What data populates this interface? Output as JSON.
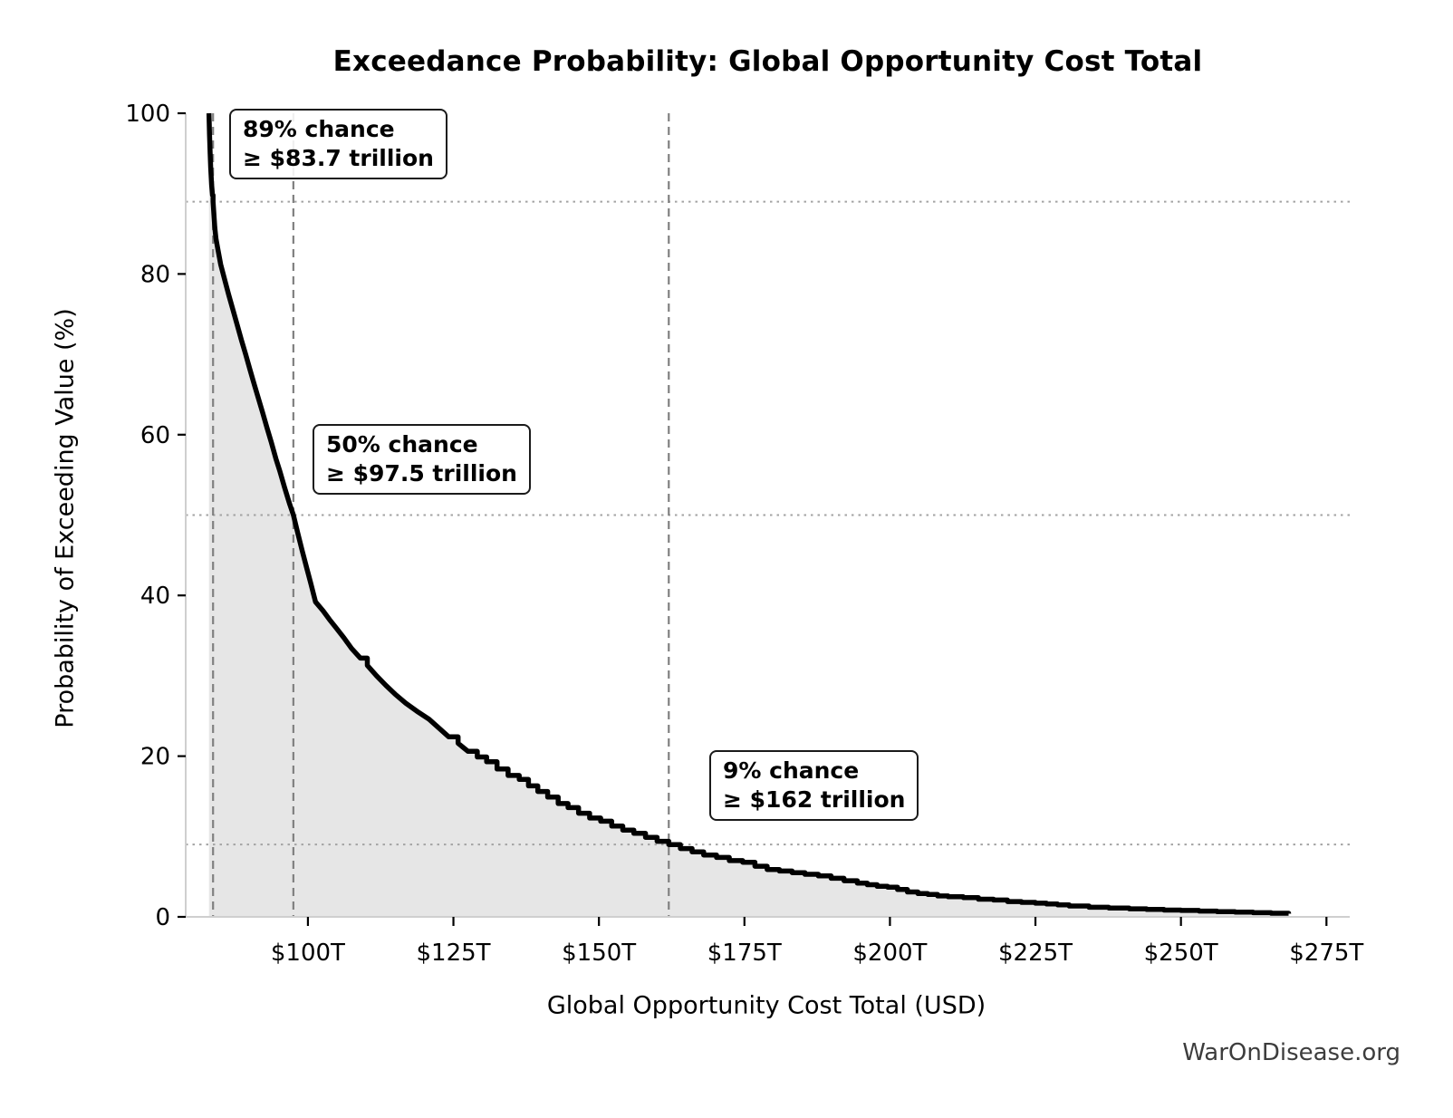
{
  "chart_data": {
    "type": "area",
    "title": "Exceedance Probability: Global Opportunity Cost Total",
    "xlabel": "Global Opportunity Cost Total (USD)",
    "ylabel": "Probability of Exceeding Value (%)",
    "watermark": "WarOnDisease.org",
    "xlim": [
      79,
      279
    ],
    "ylim": [
      0,
      100
    ],
    "x_ticks": {
      "values": [
        100,
        125,
        150,
        175,
        200,
        225,
        250,
        275
      ],
      "labels": [
        "$100T",
        "$125T",
        "$150T",
        "$175T",
        "$200T",
        "$225T",
        "$250T",
        "$275T"
      ]
    },
    "y_ticks": {
      "values": [
        0,
        20,
        40,
        60,
        80,
        100
      ],
      "labels": [
        "0",
        "20",
        "40",
        "60",
        "80",
        "100"
      ]
    },
    "legend": "none",
    "grid": "reference lines only",
    "reference_lines": {
      "vertical_x": [
        83.7,
        97.5,
        162
      ],
      "horizontal_y": [
        89,
        50,
        9
      ]
    },
    "annotations": [
      {
        "line1": "89% chance",
        "line2": "≥ $83.7 trillion",
        "x": 83.7,
        "probability": 89
      },
      {
        "line1": "50% chance",
        "line2": "≥ $97.5 trillion",
        "x": 97.5,
        "probability": 50
      },
      {
        "line1": "9% chance",
        "line2": "≥ $162 trillion",
        "x": 162,
        "probability": 9
      }
    ],
    "series": [
      {
        "name": "Exceedance probability",
        "color": "#000000",
        "fill_color": "#e6e6e6",
        "points": [
          [
            83.0,
            100.0
          ],
          [
            83.1,
            97.3
          ],
          [
            83.2,
            95.0
          ],
          [
            83.3,
            93.2
          ],
          [
            83.45,
            91.1
          ],
          [
            83.6,
            89.8
          ],
          [
            83.7,
            89.0
          ],
          [
            83.85,
            87.3
          ],
          [
            84.0,
            85.8
          ],
          [
            84.2,
            84.4
          ],
          [
            84.5,
            83.2
          ],
          [
            85.0,
            81.2
          ],
          [
            85.7,
            79.3
          ],
          [
            86.4,
            77.4
          ],
          [
            87.1,
            75.6
          ],
          [
            87.8,
            73.8
          ],
          [
            88.6,
            71.7
          ],
          [
            89.3,
            70.0
          ],
          [
            90.0,
            68.2
          ],
          [
            90.8,
            66.2
          ],
          [
            91.5,
            64.5
          ],
          [
            92.2,
            62.8
          ],
          [
            93.0,
            60.8
          ],
          [
            93.7,
            59.1
          ],
          [
            94.5,
            57.0
          ],
          [
            95.2,
            55.4
          ],
          [
            96.0,
            53.4
          ],
          [
            96.8,
            51.5
          ],
          [
            97.5,
            50.0
          ],
          [
            98.2,
            47.9
          ],
          [
            99.0,
            45.6
          ],
          [
            99.8,
            43.4
          ],
          [
            100.5,
            41.5
          ],
          [
            101.3,
            39.2
          ],
          [
            102.6,
            38.1
          ],
          [
            103.7,
            37.0
          ],
          [
            104.8,
            36.0
          ],
          [
            106.2,
            34.7
          ],
          [
            107.5,
            33.4
          ],
          [
            109.0,
            32.2
          ],
          [
            110.2,
            31.3
          ],
          [
            111.8,
            30.0
          ],
          [
            113.4,
            28.8
          ],
          [
            115.0,
            27.7
          ],
          [
            116.8,
            26.6
          ],
          [
            118.7,
            25.6
          ],
          [
            120.8,
            24.6
          ],
          [
            122.5,
            23.5
          ],
          [
            124.2,
            22.4
          ],
          [
            125.8,
            21.6
          ],
          [
            127.5,
            20.6
          ],
          [
            129.1,
            19.9
          ],
          [
            130.7,
            19.3
          ],
          [
            132.5,
            18.4
          ],
          [
            134.4,
            17.6
          ],
          [
            136.3,
            17.1
          ],
          [
            137.9,
            16.3
          ],
          [
            139.5,
            15.6
          ],
          [
            141.2,
            14.9
          ],
          [
            143.0,
            14.1
          ],
          [
            144.7,
            13.6
          ],
          [
            146.5,
            12.9
          ],
          [
            148.4,
            12.3
          ],
          [
            150.3,
            11.9
          ],
          [
            152.2,
            11.3
          ],
          [
            154.1,
            10.8
          ],
          [
            156.0,
            10.4
          ],
          [
            158.0,
            9.9
          ],
          [
            160.0,
            9.4
          ],
          [
            162.0,
            9.0
          ],
          [
            164.0,
            8.5
          ],
          [
            166.0,
            8.1
          ],
          [
            168.0,
            7.7
          ],
          [
            170.2,
            7.4
          ],
          [
            172.4,
            7.0
          ],
          [
            174.7,
            6.8
          ],
          [
            176.8,
            6.3
          ],
          [
            178.9,
            5.9
          ],
          [
            181.0,
            5.7
          ],
          [
            183.2,
            5.5
          ],
          [
            185.4,
            5.3
          ],
          [
            187.7,
            5.1
          ],
          [
            189.9,
            4.8
          ],
          [
            192.1,
            4.5
          ],
          [
            194.4,
            4.2
          ],
          [
            196.1,
            4.0
          ],
          [
            197.8,
            3.8
          ],
          [
            199.6,
            3.7
          ],
          [
            201.3,
            3.4
          ],
          [
            203.0,
            3.1
          ],
          [
            204.8,
            2.9
          ],
          [
            206.5,
            2.8
          ],
          [
            208.2,
            2.6
          ],
          [
            210.0,
            2.5
          ],
          [
            212.6,
            2.4
          ],
          [
            215.2,
            2.2
          ],
          [
            217.8,
            2.1
          ],
          [
            220.2,
            1.9
          ],
          [
            222.6,
            1.8
          ],
          [
            225.0,
            1.7
          ],
          [
            226.9,
            1.6
          ],
          [
            228.8,
            1.5
          ],
          [
            230.8,
            1.35
          ],
          [
            234.2,
            1.2
          ],
          [
            237.6,
            1.1
          ],
          [
            241.1,
            1.0
          ],
          [
            244.1,
            0.92
          ],
          [
            247.1,
            0.85
          ],
          [
            250.0,
            0.8
          ],
          [
            253.1,
            0.72
          ],
          [
            256.2,
            0.65
          ],
          [
            259.3,
            0.6
          ],
          [
            262.4,
            0.52
          ],
          [
            265.5,
            0.45
          ],
          [
            268.5,
            0.4
          ]
        ]
      }
    ],
    "colors": {
      "curve": "#000000",
      "fill": "#e6e6e6",
      "dashed_vline": "#808080",
      "dotted_hline": "#a3a3a3",
      "spine": "#cfcfcf",
      "tick": "#000000",
      "watermark_text": "#3d3d3d",
      "background": "#ffffff"
    }
  }
}
